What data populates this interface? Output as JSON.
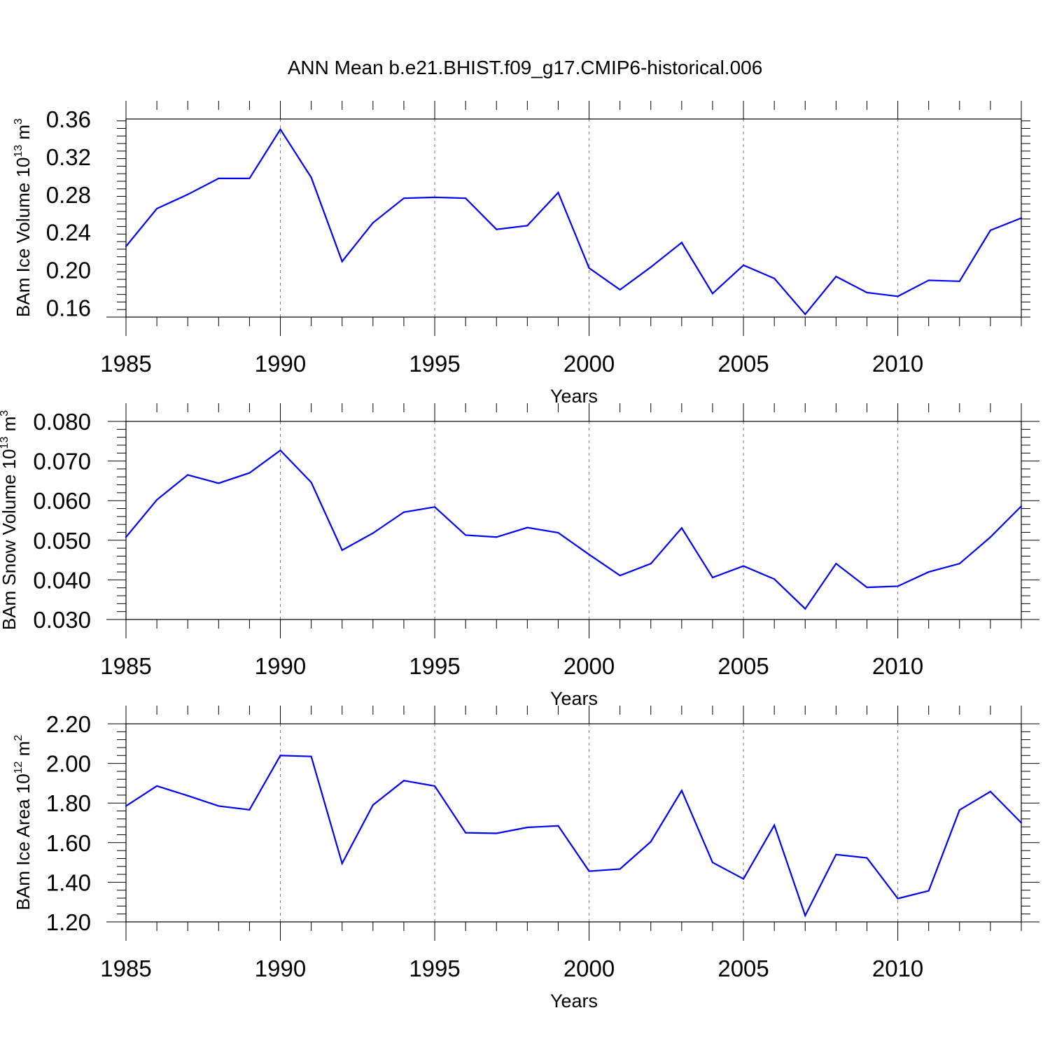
{
  "title": "ANN Mean b.e21.BHIST.f09_g17.CMIP6-historical.006",
  "chart_data": [
    {
      "type": "line",
      "title": "ANN Mean b.e21.BHIST.f09_g17.CMIP6-historical.006",
      "xlabel": "Years",
      "ylabel": "BAm Ice Volume 10^13 m^3",
      "ylabel_main": "BAm Ice Volume 10",
      "ylabel_exp": "13",
      "ylabel_unit": " m",
      "ylabel_unit_exp": "3",
      "xlim": [
        1985,
        2014
      ],
      "ylim": [
        0.15,
        0.36
      ],
      "x_ticks": [
        1985,
        1990,
        1995,
        2000,
        2005,
        2010
      ],
      "x_tick_labels": [
        "1985",
        "1990",
        "1995",
        "2000",
        "2005",
        "2010"
      ],
      "y_ticks": [
        0.16,
        0.2,
        0.24,
        0.28,
        0.32,
        0.36
      ],
      "y_tick_labels": [
        "0.16",
        "0.20",
        "0.24",
        "0.28",
        "0.32",
        "0.36"
      ],
      "x_minor_step": 1,
      "y_minor_step": 0.008,
      "grid": "dashed vertical at major x ticks",
      "series": [
        {
          "name": "BAm Ice Volume",
          "color": "#0000ff",
          "x": [
            1985,
            1986,
            1987,
            1988,
            1989,
            1990,
            1991,
            1992,
            1993,
            1994,
            1995,
            1996,
            1997,
            1998,
            1999,
            2000,
            2001,
            2002,
            2003,
            2004,
            2005,
            2006,
            2007,
            2008,
            2009,
            2010,
            2011,
            2012,
            2013,
            2014
          ],
          "values": [
            0.225,
            0.265,
            0.28,
            0.297,
            0.297,
            0.349,
            0.298,
            0.209,
            0.25,
            0.276,
            0.277,
            0.276,
            0.243,
            0.247,
            0.282,
            0.202,
            0.179,
            0.203,
            0.229,
            0.175,
            0.205,
            0.191,
            0.153,
            0.193,
            0.176,
            0.172,
            0.189,
            0.188,
            0.242,
            0.255
          ]
        }
      ]
    },
    {
      "type": "line",
      "xlabel": "Years",
      "ylabel": "BAm Snow Volume 10^13 m^3",
      "ylabel_main": "BAm Snow Volume 10",
      "ylabel_exp": "13",
      "ylabel_unit": " m",
      "ylabel_unit_exp": "3",
      "xlim": [
        1985,
        2014
      ],
      "ylim": [
        0.03,
        0.08
      ],
      "x_ticks": [
        1985,
        1990,
        1995,
        2000,
        2005,
        2010
      ],
      "x_tick_labels": [
        "1985",
        "1990",
        "1995",
        "2000",
        "2005",
        "2010"
      ],
      "y_ticks": [
        0.03,
        0.04,
        0.05,
        0.06,
        0.07,
        0.08
      ],
      "y_tick_labels": [
        "0.030",
        "0.040",
        "0.050",
        "0.060",
        "0.070",
        "0.080"
      ],
      "x_minor_step": 1,
      "y_minor_step": 0.002,
      "grid": "dashed vertical at major x ticks",
      "series": [
        {
          "name": "BAm Snow Volume",
          "color": "#0000ff",
          "x": [
            1985,
            1986,
            1987,
            1988,
            1989,
            1990,
            1991,
            1992,
            1993,
            1994,
            1995,
            1996,
            1997,
            1998,
            1999,
            2000,
            2001,
            2002,
            2003,
            2004,
            2005,
            2006,
            2007,
            2008,
            2009,
            2010,
            2011,
            2012,
            2013,
            2014
          ],
          "values": [
            0.0508,
            0.0602,
            0.0665,
            0.0644,
            0.067,
            0.0727,
            0.0646,
            0.0475,
            0.0518,
            0.0571,
            0.0584,
            0.0513,
            0.0508,
            0.0532,
            0.0519,
            0.0464,
            0.0411,
            0.0441,
            0.0531,
            0.0406,
            0.0435,
            0.0402,
            0.0327,
            0.0441,
            0.0381,
            0.0384,
            0.042,
            0.0441,
            0.0508,
            0.0586
          ]
        }
      ]
    },
    {
      "type": "line",
      "xlabel": "Years",
      "ylabel": "BAm Ice Area 10^12 m^2",
      "ylabel_main": "BAm Ice Area 10",
      "ylabel_exp": "12",
      "ylabel_unit": " m",
      "ylabel_unit_exp": "2",
      "xlim": [
        1985,
        2014
      ],
      "ylim": [
        1.2,
        2.2
      ],
      "x_ticks": [
        1985,
        1990,
        1995,
        2000,
        2005,
        2010
      ],
      "x_tick_labels": [
        "1985",
        "1990",
        "1995",
        "2000",
        "2005",
        "2010"
      ],
      "y_ticks": [
        1.2,
        1.4,
        1.6,
        1.8,
        2.0,
        2.2
      ],
      "y_tick_labels": [
        "1.20",
        "1.40",
        "1.60",
        "1.80",
        "2.00",
        "2.20"
      ],
      "x_minor_step": 1,
      "y_minor_step": 0.04,
      "grid": "dashed vertical at major x ticks",
      "series": [
        {
          "name": "BAm Ice Area",
          "color": "#0000ff",
          "x": [
            1985,
            1986,
            1987,
            1988,
            1989,
            1990,
            1991,
            1992,
            1993,
            1994,
            1995,
            1996,
            1997,
            1998,
            1999,
            2000,
            2001,
            2002,
            2003,
            2004,
            2005,
            2006,
            2007,
            2008,
            2009,
            2010,
            2011,
            2012,
            2013,
            2014
          ],
          "values": [
            1.785,
            1.886,
            1.837,
            1.785,
            1.766,
            2.04,
            2.035,
            1.495,
            1.79,
            1.913,
            1.886,
            1.65,
            1.647,
            1.677,
            1.685,
            1.456,
            1.467,
            1.605,
            1.863,
            1.5,
            1.417,
            1.688,
            1.232,
            1.54,
            1.523,
            1.318,
            1.357,
            1.765,
            1.858,
            1.7
          ]
        }
      ]
    }
  ]
}
